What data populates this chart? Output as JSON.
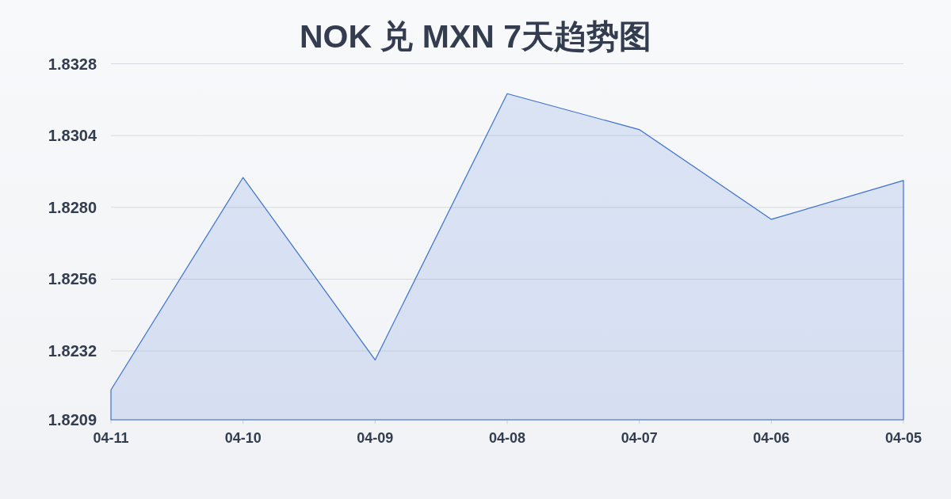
{
  "chart_data": {
    "type": "area",
    "title": "NOK 兑 MXN 7天趋势图",
    "categories": [
      "04-11",
      "04-10",
      "04-09",
      "04-08",
      "04-07",
      "04-06",
      "04-05"
    ],
    "series": [
      {
        "color": "#3b6fd4",
        "values": [
          1.8219,
          1.829,
          1.8229,
          1.8318,
          1.8306,
          1.8276,
          1.8289
        ]
      }
    ],
    "ylim": [
      1.8209,
      1.8328
    ],
    "yticks": [
      1.8209,
      1.8232,
      1.8256,
      {
        "value": 1.828,
        "label": "1.8280"
      },
      1.8304,
      1.8328
    ],
    "grid": "y"
  }
}
